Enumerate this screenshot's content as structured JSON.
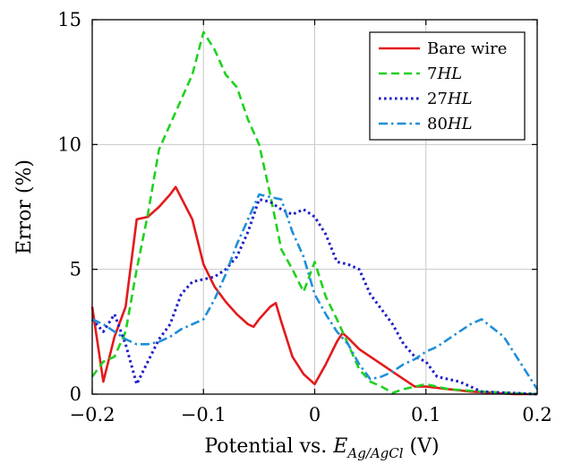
{
  "chart_data": {
    "type": "line",
    "xlabel": "Potential vs. E_{Ag/AgCl} (V)",
    "xlabel_parts": {
      "prefix": "Potential vs. ",
      "var": "E",
      "sub": "Ag/AgCl",
      "suffix": " (V)"
    },
    "ylabel": "Error (%)",
    "xlim": [
      -0.2,
      0.2
    ],
    "ylim": [
      0,
      15
    ],
    "xticks": [
      -0.2,
      -0.1,
      0,
      0.1,
      0.2
    ],
    "xtick_labels": [
      "−0.2",
      "−0.1",
      "0",
      "0.1",
      "0.2"
    ],
    "yticks": [
      0,
      5,
      10,
      15
    ],
    "ytick_labels": [
      "0",
      "5",
      "10",
      "15"
    ],
    "grid": true,
    "legend_position": "top-right",
    "series": [
      {
        "name": "Bare wire",
        "color": "#e31a1c",
        "dash": "solid",
        "x": [
          -0.2,
          -0.19,
          -0.18,
          -0.17,
          -0.16,
          -0.15,
          -0.14,
          -0.13,
          -0.125,
          -0.11,
          -0.1,
          -0.09,
          -0.08,
          -0.07,
          -0.06,
          -0.055,
          -0.05,
          -0.04,
          -0.035,
          -0.03,
          -0.02,
          -0.01,
          0.0,
          0.01,
          0.02,
          0.025,
          0.03,
          0.04,
          0.05,
          0.06,
          0.07,
          0.08,
          0.09,
          0.1,
          0.12,
          0.14,
          0.16,
          0.18,
          0.2
        ],
        "y": [
          3.5,
          0.5,
          2.3,
          3.5,
          7.0,
          7.1,
          7.5,
          8.0,
          8.3,
          7.0,
          5.2,
          4.3,
          3.7,
          3.2,
          2.8,
          2.7,
          3.0,
          3.5,
          3.65,
          2.9,
          1.5,
          0.8,
          0.4,
          1.2,
          2.1,
          2.45,
          2.25,
          1.8,
          1.5,
          1.2,
          0.9,
          0.6,
          0.3,
          0.3,
          0.2,
          0.1,
          0.05,
          0.0,
          0.0
        ]
      },
      {
        "name": "7HL",
        "color": "#1fd11f",
        "dash": "dashed",
        "x": [
          -0.2,
          -0.19,
          -0.18,
          -0.17,
          -0.16,
          -0.15,
          -0.14,
          -0.13,
          -0.12,
          -0.11,
          -0.1,
          -0.09,
          -0.08,
          -0.07,
          -0.06,
          -0.05,
          -0.04,
          -0.03,
          -0.02,
          -0.01,
          0.0,
          0.01,
          0.02,
          0.03,
          0.04,
          0.05,
          0.06,
          0.07,
          0.08,
          0.1,
          0.12,
          0.15,
          0.2
        ],
        "y": [
          0.7,
          1.3,
          1.5,
          2.5,
          5.0,
          7.2,
          9.8,
          10.8,
          11.8,
          12.8,
          14.5,
          13.8,
          12.8,
          12.3,
          11.0,
          10.0,
          8.0,
          5.8,
          5.0,
          4.1,
          5.3,
          3.9,
          3.0,
          2.0,
          1.0,
          0.5,
          0.3,
          0.05,
          0.2,
          0.4,
          0.2,
          0.1,
          0.0
        ]
      },
      {
        "name": "27HL",
        "color": "#1f1fc8",
        "dash": "dotted",
        "x": [
          -0.2,
          -0.19,
          -0.18,
          -0.17,
          -0.16,
          -0.15,
          -0.14,
          -0.13,
          -0.12,
          -0.11,
          -0.1,
          -0.09,
          -0.08,
          -0.07,
          -0.06,
          -0.05,
          -0.04,
          -0.03,
          -0.02,
          -0.01,
          0.0,
          0.01,
          0.02,
          0.03,
          0.04,
          0.05,
          0.06,
          0.07,
          0.08,
          0.09,
          0.1,
          0.11,
          0.12,
          0.13,
          0.14,
          0.15,
          0.2
        ],
        "y": [
          3.0,
          2.5,
          3.2,
          2.0,
          0.4,
          1.3,
          2.2,
          2.8,
          4.0,
          4.5,
          4.6,
          4.7,
          5.0,
          5.5,
          6.5,
          7.8,
          7.7,
          7.4,
          7.2,
          7.4,
          7.1,
          6.4,
          5.3,
          5.2,
          5.0,
          4.0,
          3.4,
          2.8,
          2.0,
          1.5,
          1.3,
          0.7,
          0.6,
          0.5,
          0.3,
          0.1,
          0.0
        ]
      },
      {
        "name": "80HL",
        "color": "#1f8fd8",
        "dash": "dashdot",
        "x": [
          -0.2,
          -0.19,
          -0.18,
          -0.17,
          -0.16,
          -0.15,
          -0.14,
          -0.13,
          -0.12,
          -0.11,
          -0.1,
          -0.09,
          -0.08,
          -0.07,
          -0.06,
          -0.05,
          -0.04,
          -0.03,
          -0.02,
          -0.01,
          0.0,
          0.01,
          0.02,
          0.03,
          0.04,
          0.05,
          0.06,
          0.07,
          0.08,
          0.09,
          0.1,
          0.11,
          0.12,
          0.13,
          0.14,
          0.15,
          0.17,
          0.2
        ],
        "y": [
          3.0,
          2.8,
          2.5,
          2.2,
          2.0,
          2.0,
          2.1,
          2.3,
          2.6,
          2.8,
          3.0,
          3.8,
          4.8,
          6.0,
          7.0,
          8.0,
          7.9,
          7.8,
          6.5,
          5.5,
          4.0,
          3.2,
          2.5,
          2.0,
          1.2,
          0.6,
          0.7,
          0.9,
          1.2,
          1.4,
          1.7,
          1.9,
          2.2,
          2.5,
          2.8,
          3.0,
          2.3,
          0.2
        ]
      }
    ]
  }
}
